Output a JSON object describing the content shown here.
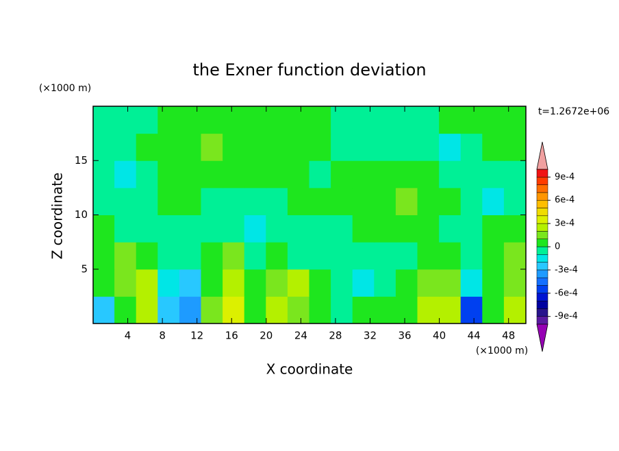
{
  "chart_data": {
    "type": "contour",
    "title": "the Exner function deviation",
    "x_label": "X coordinate",
    "y_label": "Z coordinate",
    "x_unit": "(×1000 m)",
    "y_unit": "(×1000 m)",
    "time_label": "t=1.2672e+06",
    "xlim": [
      0,
      50
    ],
    "ylim": [
      0,
      20
    ],
    "xticks": [
      4,
      8,
      12,
      16,
      20,
      24,
      28,
      32,
      36,
      40,
      44,
      48
    ],
    "yticks": [
      5,
      10,
      15
    ],
    "z": [
      [
        -0.00025,
        5e-05,
        0.00025,
        -0.00025,
        -0.00035,
        0.00015,
        0.00035,
        5e-05,
        0.00025,
        0.00015,
        5e-05,
        -5e-05,
        5e-05,
        5e-05,
        5e-05,
        0.00025,
        0.00025,
        -0.00055,
        5e-05,
        0.00025
      ],
      [
        5e-05,
        0.00015,
        0.00025,
        -0.00015,
        -0.00025,
        5e-05,
        0.00025,
        5e-05,
        0.00015,
        0.00025,
        5e-05,
        -5e-05,
        -0.00015,
        -5e-05,
        5e-05,
        0.00015,
        0.00015,
        -0.00015,
        5e-05,
        0.00015
      ],
      [
        5e-05,
        0.00015,
        5e-05,
        -5e-05,
        -5e-05,
        5e-05,
        0.00015,
        -5e-05,
        5e-05,
        -5e-05,
        -5e-05,
        -5e-05,
        -5e-05,
        -5e-05,
        -5e-05,
        5e-05,
        5e-05,
        -5e-05,
        5e-05,
        0.00015
      ],
      [
        5e-05,
        -5e-05,
        -5e-05,
        -5e-05,
        -5e-05,
        -5e-05,
        -5e-05,
        -0.00015,
        -5e-05,
        -5e-05,
        -5e-05,
        -5e-05,
        5e-05,
        5e-05,
        5e-05,
        5e-05,
        -5e-05,
        -5e-05,
        5e-05,
        5e-05
      ],
      [
        -5e-05,
        -5e-05,
        -5e-05,
        5e-05,
        5e-05,
        -5e-05,
        -5e-05,
        -5e-05,
        -5e-05,
        5e-05,
        5e-05,
        5e-05,
        5e-05,
        5e-05,
        0.00015,
        5e-05,
        5e-05,
        -5e-05,
        -0.00015,
        -5e-05
      ],
      [
        -5e-05,
        -0.00015,
        -5e-05,
        5e-05,
        5e-05,
        5e-05,
        5e-05,
        5e-05,
        5e-05,
        5e-05,
        -5e-05,
        5e-05,
        5e-05,
        5e-05,
        5e-05,
        5e-05,
        -5e-05,
        -5e-05,
        -5e-05,
        -5e-05
      ],
      [
        -5e-05,
        -5e-05,
        5e-05,
        5e-05,
        5e-05,
        0.00015,
        5e-05,
        5e-05,
        5e-05,
        5e-05,
        5e-05,
        -5e-05,
        -5e-05,
        -5e-05,
        -5e-05,
        -5e-05,
        -0.00015,
        -5e-05,
        5e-05,
        5e-05
      ],
      [
        -5e-05,
        -5e-05,
        -5e-05,
        5e-05,
        5e-05,
        5e-05,
        5e-05,
        5e-05,
        5e-05,
        5e-05,
        5e-05,
        -5e-05,
        -5e-05,
        -5e-05,
        -5e-05,
        -5e-05,
        5e-05,
        5e-05,
        5e-05,
        5e-05
      ]
    ],
    "colorbar": {
      "levels": [
        -0.001,
        -0.0009,
        -0.0008,
        -0.0007,
        -0.0006,
        -0.0005,
        -0.0004,
        -0.0003,
        -0.0002,
        -0.0001,
        0,
        0.0001,
        0.0002,
        0.0003,
        0.0004,
        0.0005,
        0.0006,
        0.0007,
        0.0008,
        0.0009,
        0.001
      ],
      "colors": [
        "#5a1aa0",
        "#28148c",
        "#0000a0",
        "#0014d2",
        "#0040f0",
        "#1470ff",
        "#1e9bff",
        "#28c8ff",
        "#00e6e6",
        "#00f096",
        "#1ee61e",
        "#7ae61e",
        "#b4f000",
        "#dcf000",
        "#f0dc00",
        "#ffbe00",
        "#ff9600",
        "#ff6e00",
        "#ff3c00",
        "#f01414"
      ],
      "under_color": "#9600b4",
      "over_color": "#f0a0a0",
      "ticks": [
        {
          "value": -0.0009,
          "label": "-9e-4"
        },
        {
          "value": -0.0006,
          "label": "-6e-4"
        },
        {
          "value": -0.0003,
          "label": "-3e-4"
        },
        0,
        {
          "value": 0.0003,
          "label": "3e-4"
        },
        {
          "value": 0.0006,
          "label": "6e-4"
        },
        {
          "value": 0.0009,
          "label": "9e-4"
        }
      ]
    }
  }
}
